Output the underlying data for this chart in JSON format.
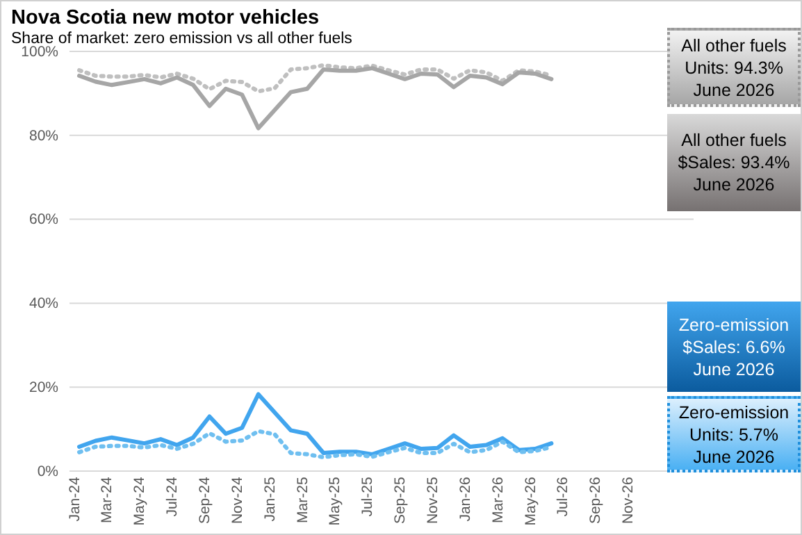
{
  "chart_data": {
    "type": "line",
    "title": "Nova Scotia new motor vehicles",
    "subtitle": "Share of market:  zero emission vs all other fuels",
    "categories": [
      "Jan-24",
      null,
      "Mar-24",
      null,
      "May-24",
      null,
      "Jul-24",
      null,
      "Sep-24",
      null,
      "Nov-24",
      null,
      "Jan-25",
      null,
      "Mar-25",
      null,
      "May-25",
      null,
      "Jul-25",
      null,
      "Sep-25",
      null,
      "Nov-25",
      null,
      "Jan-26",
      null,
      "Mar-26",
      null,
      "May-26",
      null,
      "Jul-26",
      null,
      "Sep-26",
      null,
      "Nov-26",
      null
    ],
    "series": [
      {
        "color": "#bfbfbf",
        "line_style": "dotted",
        "values": [
          95.5,
          94.2,
          94.0,
          94.0,
          94.4,
          93.8,
          94.7,
          93.5,
          91.0,
          93.0,
          92.7,
          90.5,
          91.2,
          95.7,
          96.0,
          96.7,
          96.2,
          96.0,
          96.6,
          95.5,
          94.5,
          95.7,
          95.7,
          93.5,
          95.5,
          95.0,
          93.0,
          95.5,
          95.2,
          94.3,
          null,
          null,
          null,
          null,
          null,
          null
        ]
      },
      {
        "color": "#a6a6a6",
        "line_style": "solid",
        "values": [
          94.2,
          92.8,
          92.0,
          92.7,
          93.4,
          92.4,
          93.8,
          92.0,
          87.0,
          91.1,
          89.7,
          81.7,
          86.0,
          90.3,
          91.1,
          95.7,
          95.4,
          95.4,
          96.0,
          94.7,
          93.4,
          94.7,
          94.5,
          91.5,
          94.2,
          93.8,
          92.2,
          95.0,
          94.7,
          93.4,
          null,
          null,
          null,
          null,
          null,
          null
        ]
      },
      {
        "color": "#41a5ee",
        "line_style": "solid",
        "values": [
          5.8,
          7.2,
          8.0,
          7.3,
          6.6,
          7.6,
          6.2,
          8.0,
          13.0,
          8.9,
          10.3,
          18.3,
          14.0,
          9.7,
          8.9,
          4.3,
          4.6,
          4.6,
          4.0,
          5.3,
          6.6,
          5.3,
          5.5,
          8.5,
          5.8,
          6.2,
          7.8,
          5.0,
          5.3,
          6.6,
          null,
          null,
          null,
          null,
          null,
          null
        ]
      },
      {
        "color": "#6fbff0",
        "line_style": "dotted",
        "values": [
          4.5,
          5.8,
          6.0,
          6.0,
          5.6,
          6.2,
          5.3,
          6.5,
          9.0,
          7.0,
          7.3,
          9.5,
          8.8,
          4.3,
          4.0,
          3.3,
          3.8,
          4.0,
          3.4,
          4.5,
          5.5,
          4.3,
          4.3,
          6.5,
          4.5,
          5.0,
          7.0,
          4.5,
          4.8,
          5.7,
          null,
          null,
          null,
          null,
          null,
          null
        ]
      }
    ],
    "ylim": [
      0,
      100
    ],
    "yticks": [
      {
        "value": 0,
        "label": "0%"
      },
      {
        "value": 20,
        "label": "20%"
      },
      {
        "value": 40,
        "label": "40%"
      },
      {
        "value": 60,
        "label": "60%"
      },
      {
        "value": 80,
        "label": "80%"
      },
      {
        "value": 100,
        "label": "100%"
      }
    ],
    "grid": "y",
    "annotations": [
      "All other fuels Units: 94.3% June 2026",
      "All other fuels $Sales: 93.4% June 2026",
      "Zero-emission $Sales: 6.6% June 2026",
      "Zero-emission Units: 5.7% June 2026"
    ]
  }
}
